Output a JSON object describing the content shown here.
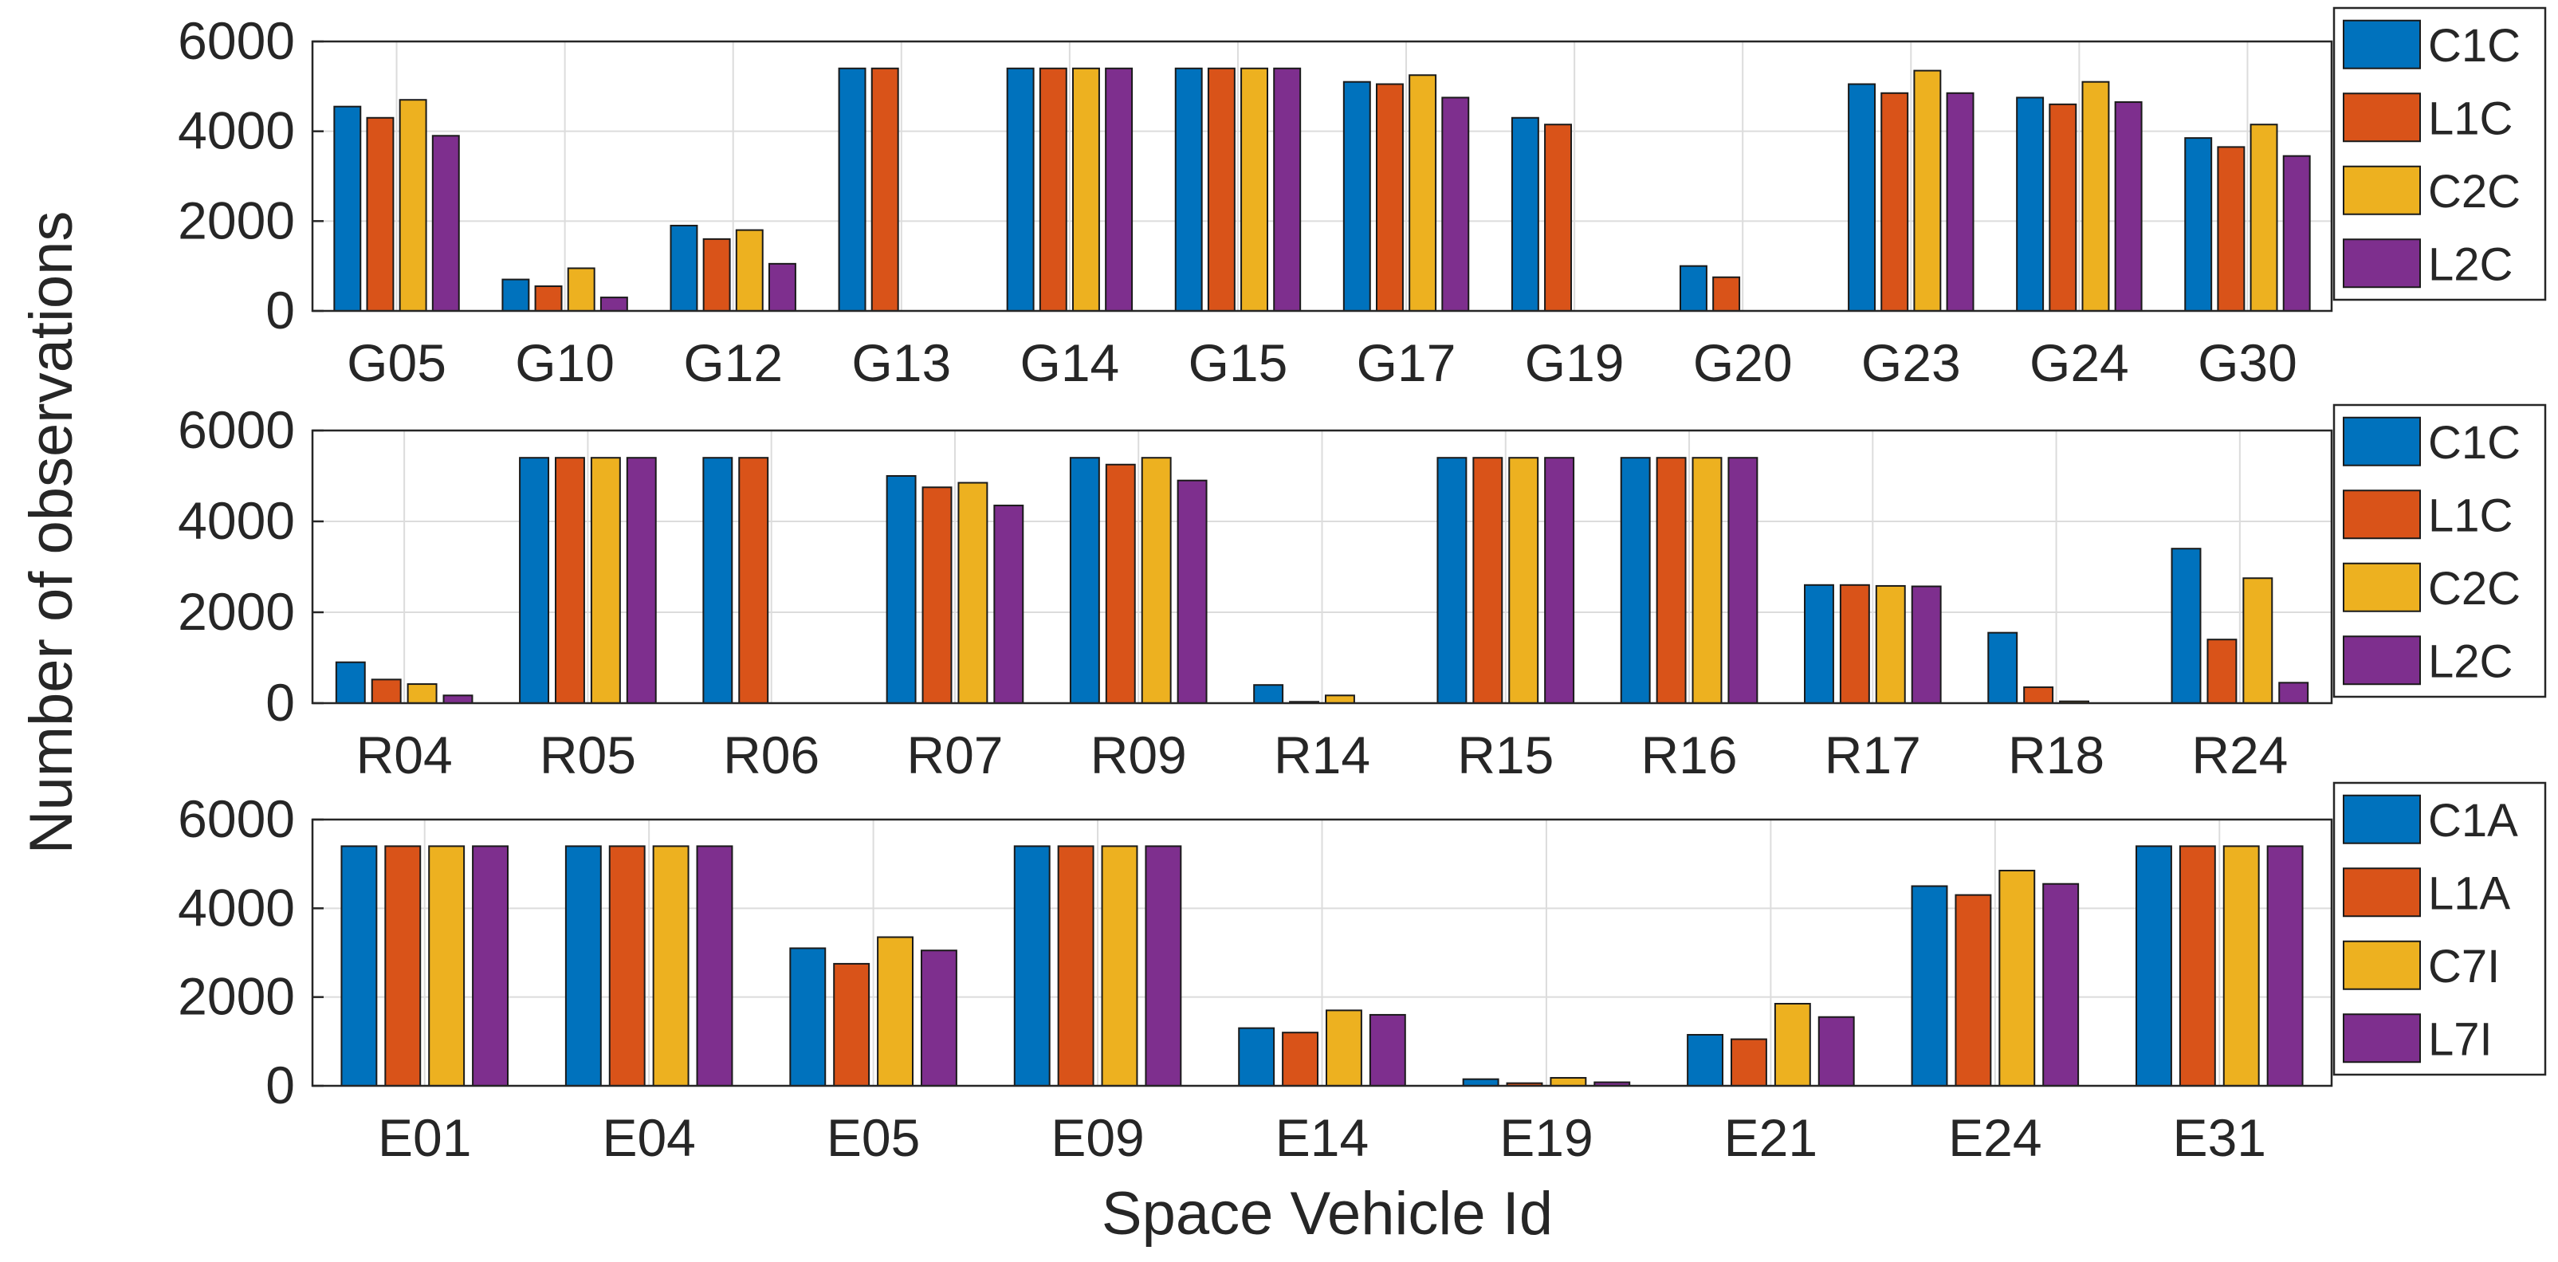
{
  "ylabel": "Number of observations",
  "xlabel": "Space Vehicle Id",
  "colors": {
    "blue": "#0072bd",
    "orange": "#d95319",
    "yellow": "#edb120",
    "purple": "#7e2f8e"
  },
  "chart_data": [
    {
      "type": "bar",
      "categories": [
        "G05",
        "G10",
        "G12",
        "G13",
        "G14",
        "G15",
        "G17",
        "G19",
        "G20",
        "G23",
        "G24",
        "G30"
      ],
      "series": [
        {
          "name": "C1C",
          "color": "#0072bd",
          "values": [
            4550,
            700,
            1900,
            5400,
            5400,
            5400,
            5100,
            4300,
            1000,
            5050,
            4750,
            3850
          ]
        },
        {
          "name": "L1C",
          "color": "#d95319",
          "values": [
            4300,
            550,
            1600,
            5400,
            5400,
            5400,
            5050,
            4150,
            750,
            4850,
            4600,
            3650
          ]
        },
        {
          "name": "C2C",
          "color": "#edb120",
          "values": [
            4700,
            950,
            1800,
            0,
            5400,
            5400,
            5250,
            0,
            0,
            5350,
            5100,
            4150
          ]
        },
        {
          "name": "L2C",
          "color": "#7e2f8e",
          "values": [
            3900,
            300,
            1050,
            0,
            5400,
            5400,
            4750,
            0,
            0,
            4850,
            4650,
            3450
          ]
        }
      ],
      "ylim": [
        0,
        6000
      ],
      "yticks": [
        0,
        2000,
        4000,
        6000
      ],
      "grid": true,
      "legend_position": "right"
    },
    {
      "type": "bar",
      "categories": [
        "R04",
        "R05",
        "R06",
        "R07",
        "R09",
        "R14",
        "R15",
        "R16",
        "R17",
        "R18",
        "R24"
      ],
      "series": [
        {
          "name": "C1C",
          "color": "#0072bd",
          "values": [
            900,
            5400,
            5400,
            5000,
            5400,
            400,
            5400,
            5400,
            2600,
            1550,
            3400
          ]
        },
        {
          "name": "L1C",
          "color": "#d95319",
          "values": [
            520,
            5400,
            5400,
            4750,
            5250,
            30,
            5400,
            5400,
            2600,
            350,
            1400
          ]
        },
        {
          "name": "C2C",
          "color": "#edb120",
          "values": [
            420,
            5400,
            0,
            4850,
            5400,
            170,
            5400,
            5400,
            2580,
            40,
            2750
          ]
        },
        {
          "name": "L2C",
          "color": "#7e2f8e",
          "values": [
            170,
            5400,
            0,
            4350,
            4900,
            0,
            5400,
            5400,
            2570,
            0,
            450
          ]
        }
      ],
      "ylim": [
        0,
        6000
      ],
      "yticks": [
        0,
        2000,
        4000,
        6000
      ],
      "grid": true,
      "legend_position": "right"
    },
    {
      "type": "bar",
      "categories": [
        "E01",
        "E04",
        "E05",
        "E09",
        "E14",
        "E19",
        "E21",
        "E24",
        "E31"
      ],
      "series": [
        {
          "name": "C1A",
          "color": "#0072bd",
          "values": [
            5400,
            5400,
            3100,
            5400,
            1300,
            150,
            1150,
            4500,
            5400
          ]
        },
        {
          "name": "L1A",
          "color": "#d95319",
          "values": [
            5400,
            5400,
            2750,
            5400,
            1200,
            60,
            1050,
            4300,
            5400
          ]
        },
        {
          "name": "C7I",
          "color": "#edb120",
          "values": [
            5400,
            5400,
            3350,
            5400,
            1700,
            180,
            1850,
            4850,
            5400
          ]
        },
        {
          "name": "L7I",
          "color": "#7e2f8e",
          "values": [
            5400,
            5400,
            3050,
            5400,
            1600,
            80,
            1550,
            4550,
            5400
          ]
        }
      ],
      "ylim": [
        0,
        6000
      ],
      "yticks": [
        0,
        2000,
        4000,
        6000
      ],
      "grid": true,
      "legend_position": "right"
    }
  ]
}
